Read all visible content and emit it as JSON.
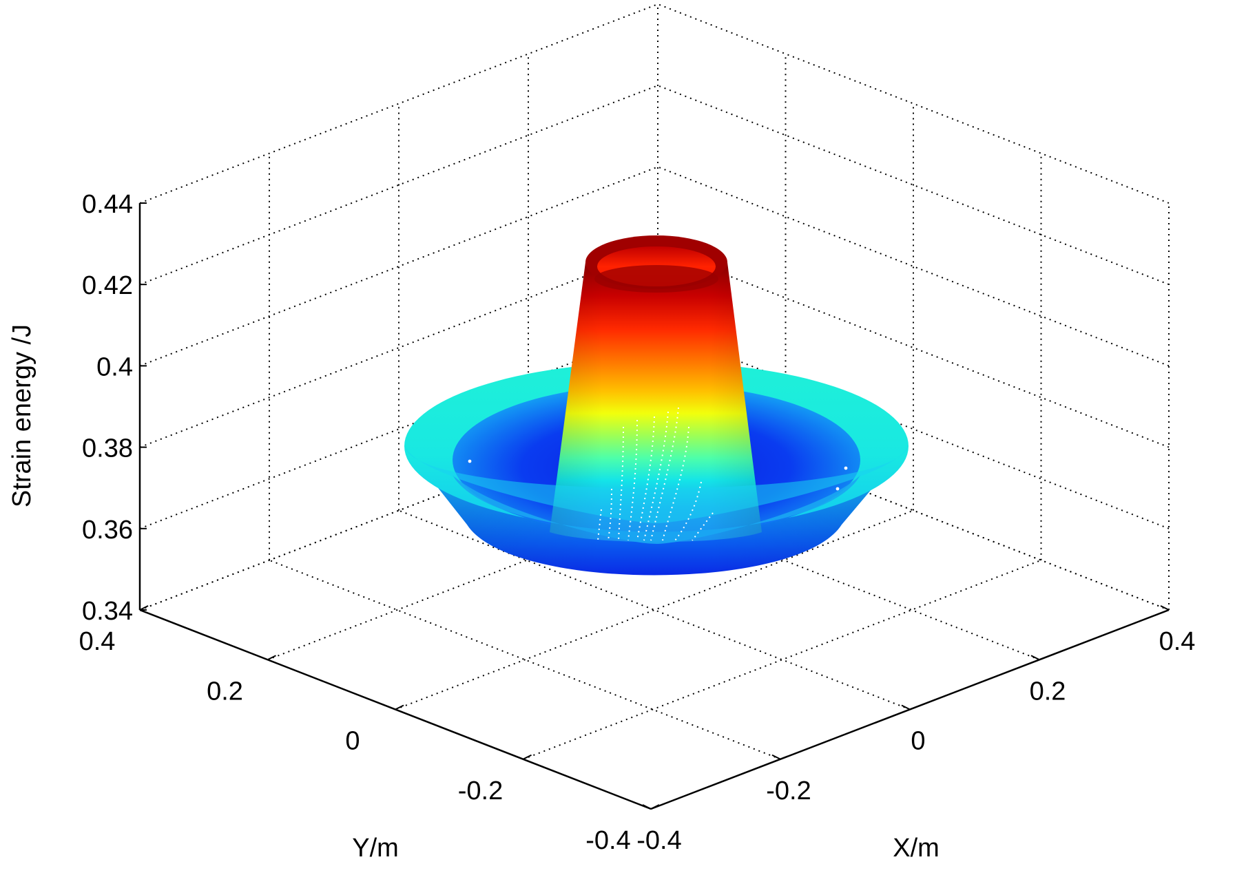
{
  "chart_data": {
    "type": "surface3d",
    "title": "",
    "xlabel": "X/m",
    "ylabel": "Y/m",
    "zlabel": "Strain energy /J",
    "x_ticks": [
      "-0.4",
      "-0.2",
      "0",
      "0.2",
      "0.4"
    ],
    "y_ticks": [
      "-0.4",
      "-0.2",
      "0",
      "0.2",
      "0.4"
    ],
    "z_ticks": [
      "0.34",
      "0.36",
      "0.38",
      "0.4",
      "0.42",
      "0.44"
    ],
    "xlim": [
      -0.4,
      0.4
    ],
    "ylim": [
      -0.4,
      0.4
    ],
    "zlim": [
      0.34,
      0.44
    ],
    "grid": true,
    "colormap": "jet",
    "surface": {
      "shape": "axisymmetric",
      "radius_m": [
        0.0,
        0.05,
        0.1,
        0.15,
        0.2
      ],
      "strain_energy_J": [
        0.43,
        0.41,
        0.35,
        0.356,
        0.381
      ]
    }
  }
}
